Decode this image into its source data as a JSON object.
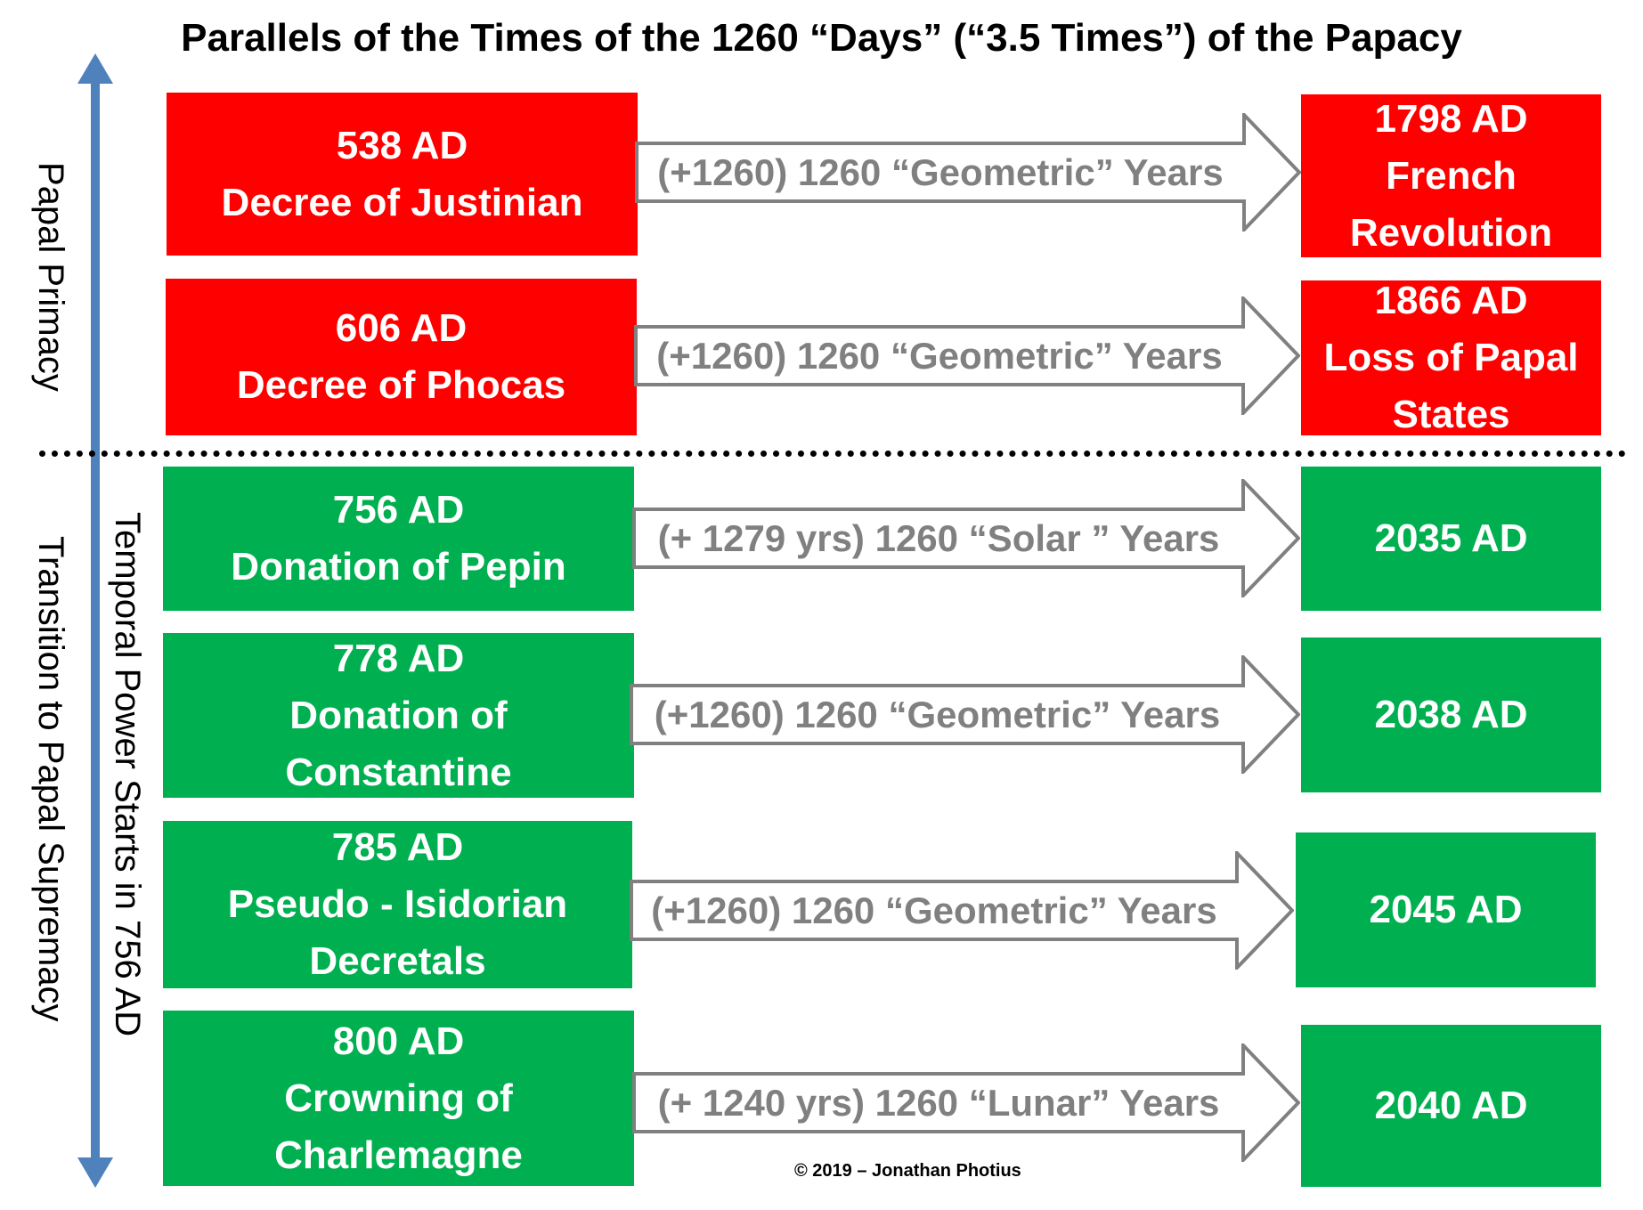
{
  "title": "Parallels of the Times of the 1260 “Days” (“3.5 Times”) of the Papacy",
  "colors": {
    "red": "#ff0000",
    "green": "#00b050",
    "arrow_axis": "#4f81bd",
    "arrow_outline": "#808080"
  },
  "side_labels": {
    "papal_primacy": "Papal Primacy",
    "transition": "Transition to Papal Supremacy",
    "temporal_power": "Temporal Power Starts in 756 AD"
  },
  "rows": [
    {
      "start": [
        "538 AD",
        "Decree of Justinian"
      ],
      "arrow": "(+1260) 1260 “Geometric” Years",
      "end": [
        "1798 AD",
        "French",
        "Revolution"
      ],
      "color": "red"
    },
    {
      "start": [
        "606 AD",
        "Decree of Phocas"
      ],
      "arrow": "(+1260) 1260 “Geometric” Years",
      "end": [
        "1866 AD",
        "Loss of Papal",
        "States"
      ],
      "color": "red"
    },
    {
      "start": [
        "756 AD",
        "Donation of Pepin"
      ],
      "arrow": "(+ 1279 yrs) 1260 “Solar ” Years",
      "end": [
        "2035 AD"
      ],
      "color": "green"
    },
    {
      "start": [
        "778 AD",
        "Donation of",
        "Constantine"
      ],
      "arrow": "(+1260) 1260 “Geometric” Years",
      "end": [
        "2038 AD"
      ],
      "color": "green"
    },
    {
      "start": [
        "785 AD",
        "Pseudo - Isidorian",
        "Decretals"
      ],
      "arrow": "(+1260) 1260 “Geometric” Years",
      "end": [
        "2045 AD"
      ],
      "color": "green"
    },
    {
      "start": [
        "800 AD",
        "Crowning of",
        "Charlemagne"
      ],
      "arrow": "(+ 1240 yrs) 1260 “Lunar” Years",
      "end": [
        "2040 AD"
      ],
      "color": "green"
    }
  ],
  "copyright": "© 2019 – Jonathan Photius"
}
